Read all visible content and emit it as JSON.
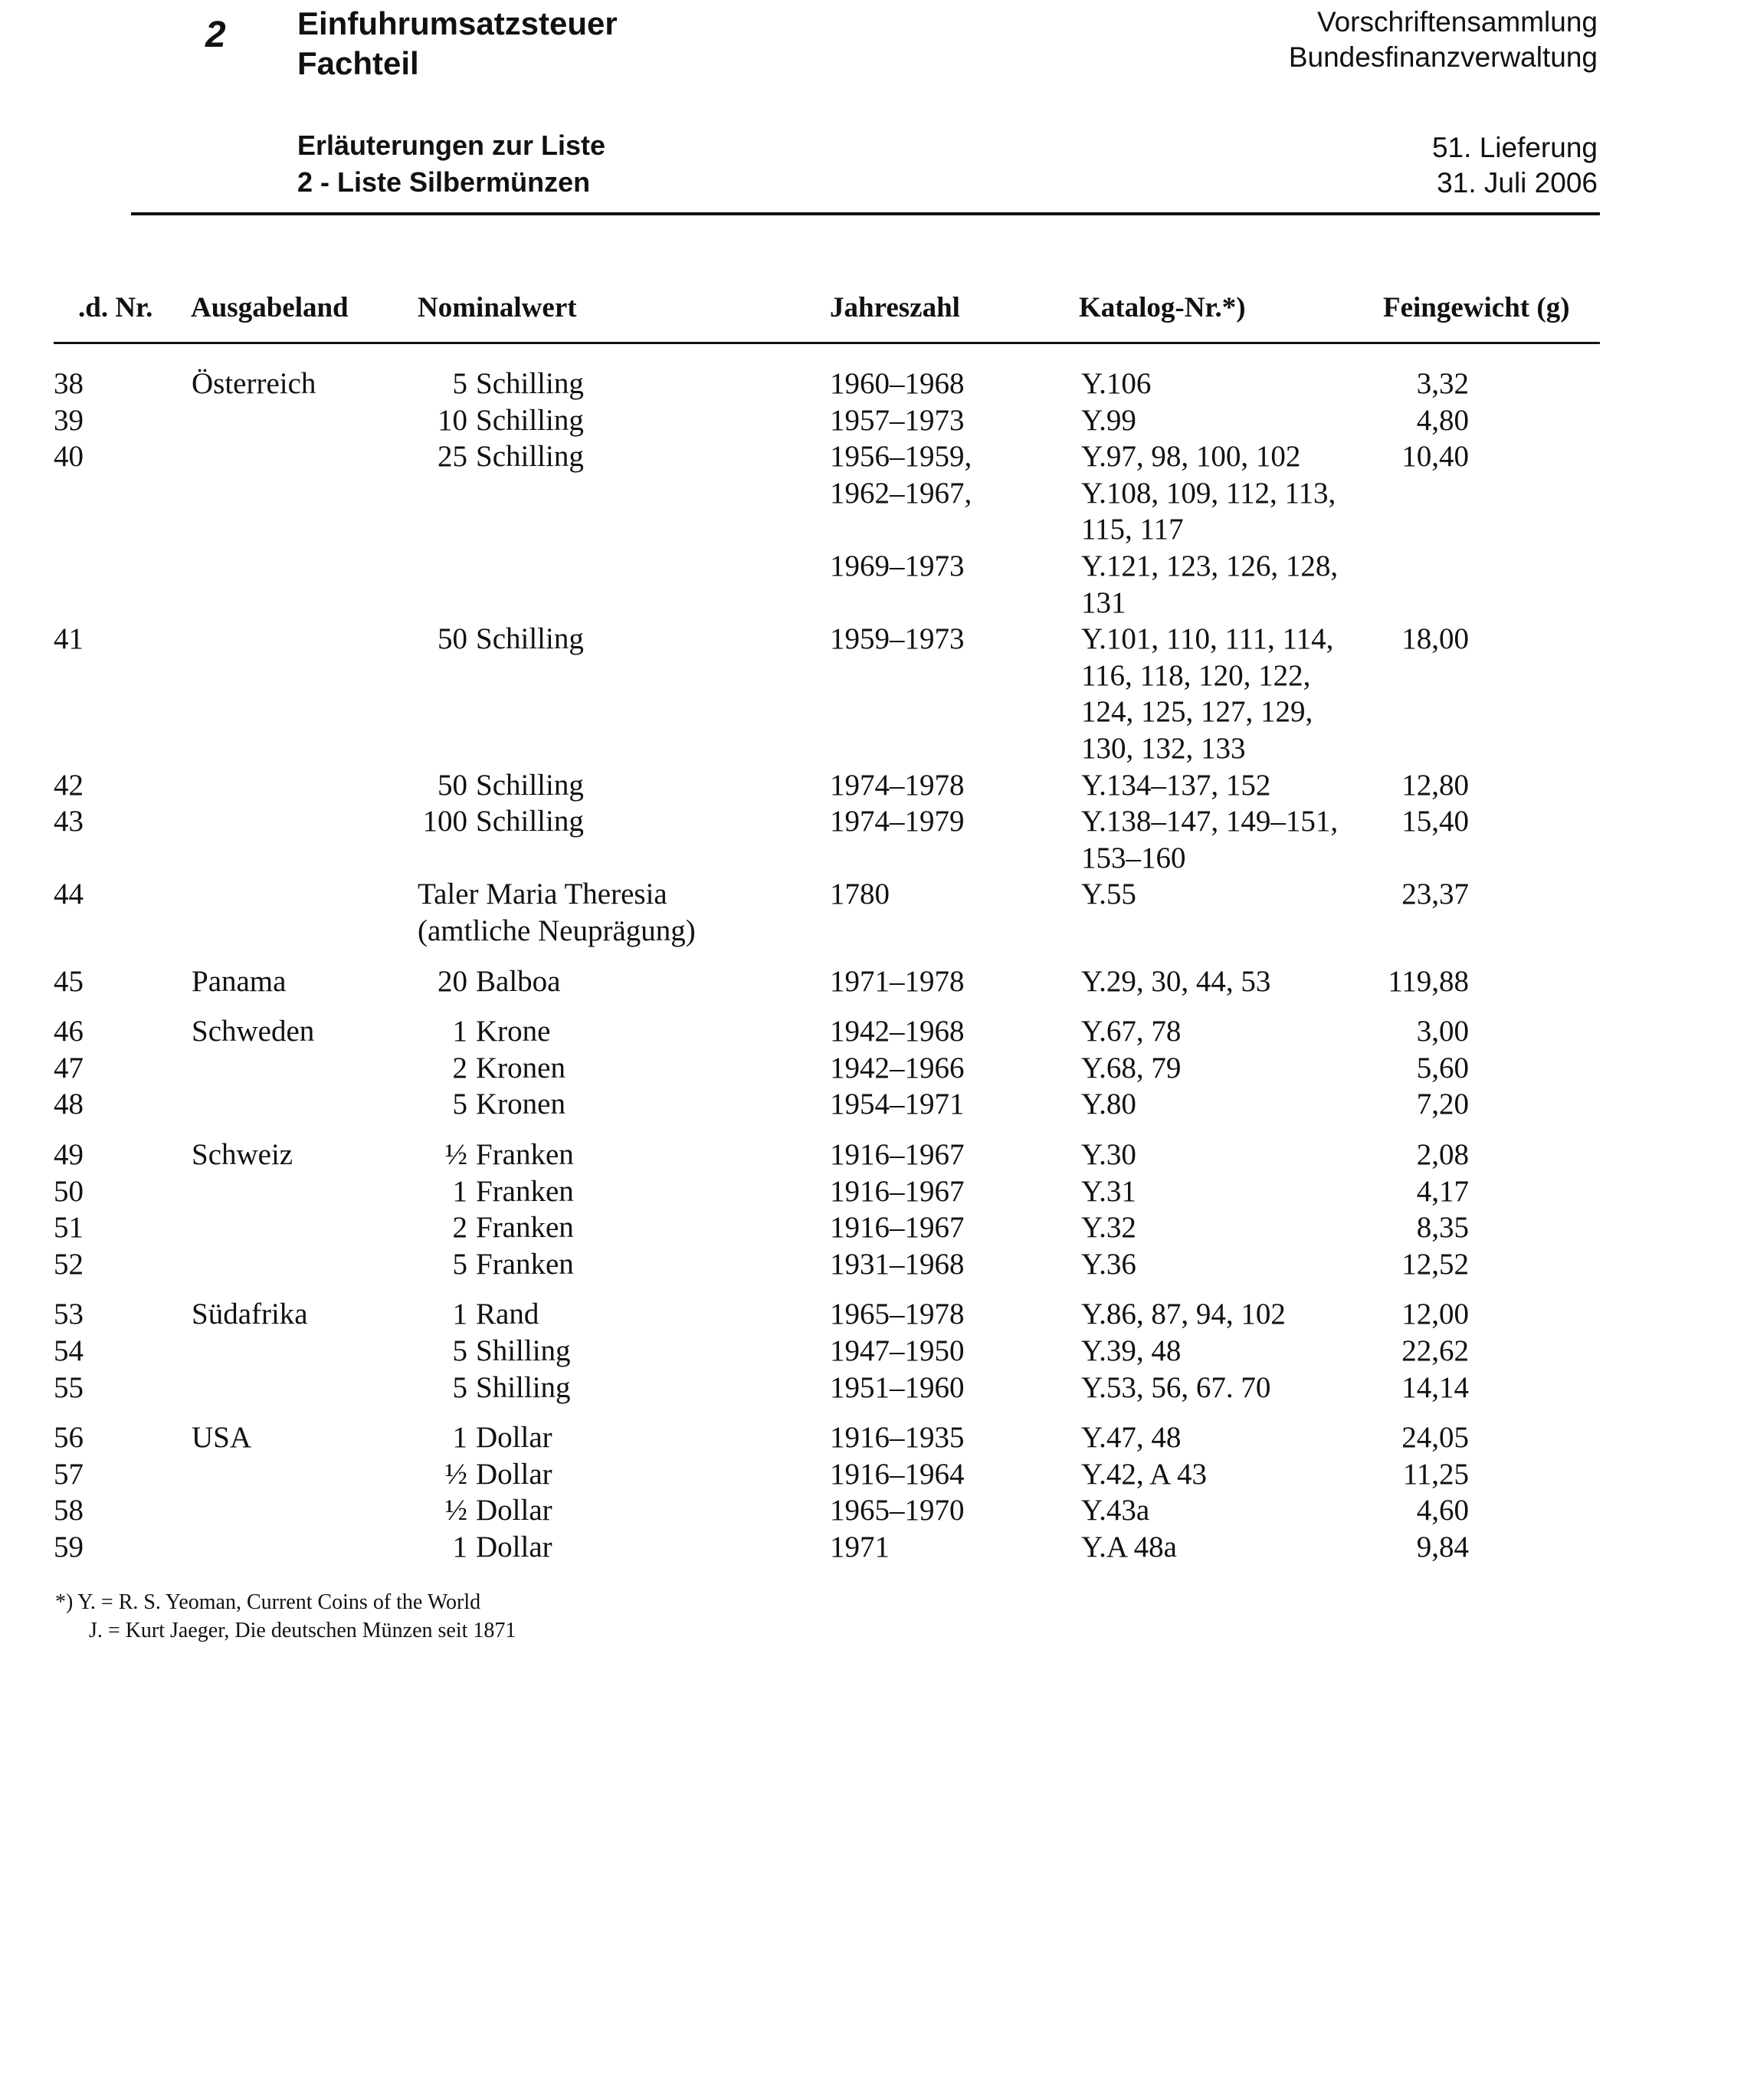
{
  "header": {
    "section_number": "2",
    "title_line1": "Einfuhrumsatzsteuer",
    "title_line2": "Fachteil",
    "collection_line1": "Vorschriftensammlung",
    "collection_line2": "Bundesfinanzverwaltung",
    "subtitle_line1": "Erläuterungen zur Liste",
    "subtitle_line2": "2 - Liste Silbermünzen",
    "delivery": "51. Lieferung",
    "date": "31. Juli 2006"
  },
  "table": {
    "columns": [
      ".d. Nr.",
      "Ausgabeland",
      "Nominalwert",
      "Jahreszahl",
      "Katalog-Nr.*)",
      "Feingewicht (g)"
    ],
    "rows": [
      {
        "nr": "38",
        "country": "Österreich",
        "num": "5",
        "unit": "Schilling",
        "years": [
          "1960–1968"
        ],
        "catalog": [
          "Y.106"
        ],
        "weight": "3,32"
      },
      {
        "nr": "39",
        "country": "",
        "num": "10",
        "unit": "Schilling",
        "years": [
          "1957–1973"
        ],
        "catalog": [
          "Y.99"
        ],
        "weight": "4,80"
      },
      {
        "nr": "40",
        "country": "",
        "num": "25",
        "unit": "Schilling",
        "years": [
          "1956–1959,",
          "1962–1967,",
          "",
          "1969–1973",
          ""
        ],
        "catalog": [
          "Y.97, 98, 100, 102",
          "Y.108, 109, 112, 113,",
          "115, 117",
          "Y.121, 123, 126, 128,",
          "131"
        ],
        "weight": "10,40"
      },
      {
        "nr": "41",
        "country": "",
        "num": "50",
        "unit": "Schilling",
        "years": [
          "1959–1973"
        ],
        "catalog": [
          "Y.101, 110, 111, 114,",
          "116, 118, 120, 122,",
          "124, 125, 127, 129,",
          "130, 132, 133"
        ],
        "weight": "18,00"
      },
      {
        "nr": "42",
        "country": "",
        "num": "50",
        "unit": "Schilling",
        "years": [
          "1974–1978"
        ],
        "catalog": [
          "Y.134–137, 152"
        ],
        "weight": "12,80"
      },
      {
        "nr": "43",
        "country": "",
        "num": "100",
        "unit": "Schilling",
        "years": [
          "1974–1979"
        ],
        "catalog": [
          "Y.138–147, 149–151,",
          "153–160"
        ],
        "weight": "15,40"
      },
      {
        "nr": "44",
        "country": "",
        "full": [
          "Taler Maria Theresia",
          "(amtliche Neuprägung)"
        ],
        "years": [
          "1780"
        ],
        "catalog": [
          "Y.55"
        ],
        "weight": "23,37"
      },
      {
        "nr": "45",
        "country": "Panama",
        "group": true,
        "num": "20",
        "unit": "Balboa",
        "years": [
          "1971–1978"
        ],
        "catalog": [
          "Y.29, 30, 44, 53"
        ],
        "weight": "119,88"
      },
      {
        "nr": "46",
        "country": "Schweden",
        "group": true,
        "num": "1",
        "unit": "Krone",
        "years": [
          "1942–1968"
        ],
        "catalog": [
          "Y.67, 78"
        ],
        "weight": "3,00"
      },
      {
        "nr": "47",
        "country": "",
        "num": "2",
        "unit": "Kronen",
        "years": [
          "1942–1966"
        ],
        "catalog": [
          "Y.68, 79"
        ],
        "weight": "5,60"
      },
      {
        "nr": "48",
        "country": "",
        "num": "5",
        "unit": "Kronen",
        "years": [
          "1954–1971"
        ],
        "catalog": [
          "Y.80"
        ],
        "weight": "7,20"
      },
      {
        "nr": "49",
        "country": "Schweiz",
        "group": true,
        "num": "½",
        "unit": "Franken",
        "years": [
          "1916–1967"
        ],
        "catalog": [
          "Y.30"
        ],
        "weight": "2,08"
      },
      {
        "nr": "50",
        "country": "",
        "num": "1",
        "unit": "Franken",
        "years": [
          "1916–1967"
        ],
        "catalog": [
          "Y.31"
        ],
        "weight": "4,17"
      },
      {
        "nr": "51",
        "country": "",
        "num": "2",
        "unit": "Franken",
        "years": [
          "1916–1967"
        ],
        "catalog": [
          "Y.32"
        ],
        "weight": "8,35"
      },
      {
        "nr": "52",
        "country": "",
        "num": "5",
        "unit": "Franken",
        "years": [
          "1931–1968"
        ],
        "catalog": [
          "Y.36"
        ],
        "weight": "12,52"
      },
      {
        "nr": "53",
        "country": "Südafrika",
        "group": true,
        "num": "1",
        "unit": "Rand",
        "years": [
          "1965–1978"
        ],
        "catalog": [
          "Y.86, 87, 94, 102"
        ],
        "weight": "12,00"
      },
      {
        "nr": "54",
        "country": "",
        "num": "5",
        "unit": "Shilling",
        "years": [
          "1947–1950"
        ],
        "catalog": [
          "Y.39, 48"
        ],
        "weight": "22,62"
      },
      {
        "nr": "55",
        "country": "",
        "num": "5",
        "unit": "Shilling",
        "years": [
          "1951–1960"
        ],
        "catalog": [
          "Y.53, 56, 67. 70"
        ],
        "weight": "14,14"
      },
      {
        "nr": "56",
        "country": "USA",
        "group": true,
        "num": "1",
        "unit": "Dollar",
        "years": [
          "1916–1935"
        ],
        "catalog": [
          "Y.47, 48"
        ],
        "weight": "24,05"
      },
      {
        "nr": "57",
        "country": "",
        "num": "½",
        "unit": "Dollar",
        "years": [
          "1916–1964"
        ],
        "catalog": [
          "Y.42, A 43"
        ],
        "weight": "11,25"
      },
      {
        "nr": "58",
        "country": "",
        "num": "½",
        "unit": "Dollar",
        "years": [
          "1965–1970"
        ],
        "catalog": [
          "Y.43a"
        ],
        "weight": "4,60"
      },
      {
        "nr": "59",
        "country": "",
        "num": "1",
        "unit": "Dollar",
        "years": [
          "1971"
        ],
        "catalog": [
          "Y.A 48a"
        ],
        "weight": "9,84"
      }
    ]
  },
  "footnotes": {
    "line1": "*) Y. = R. S. Yeoman, Current Coins of the World",
    "line2": "J. = Kurt Jaeger, Die deutschen Münzen seit 1871"
  }
}
